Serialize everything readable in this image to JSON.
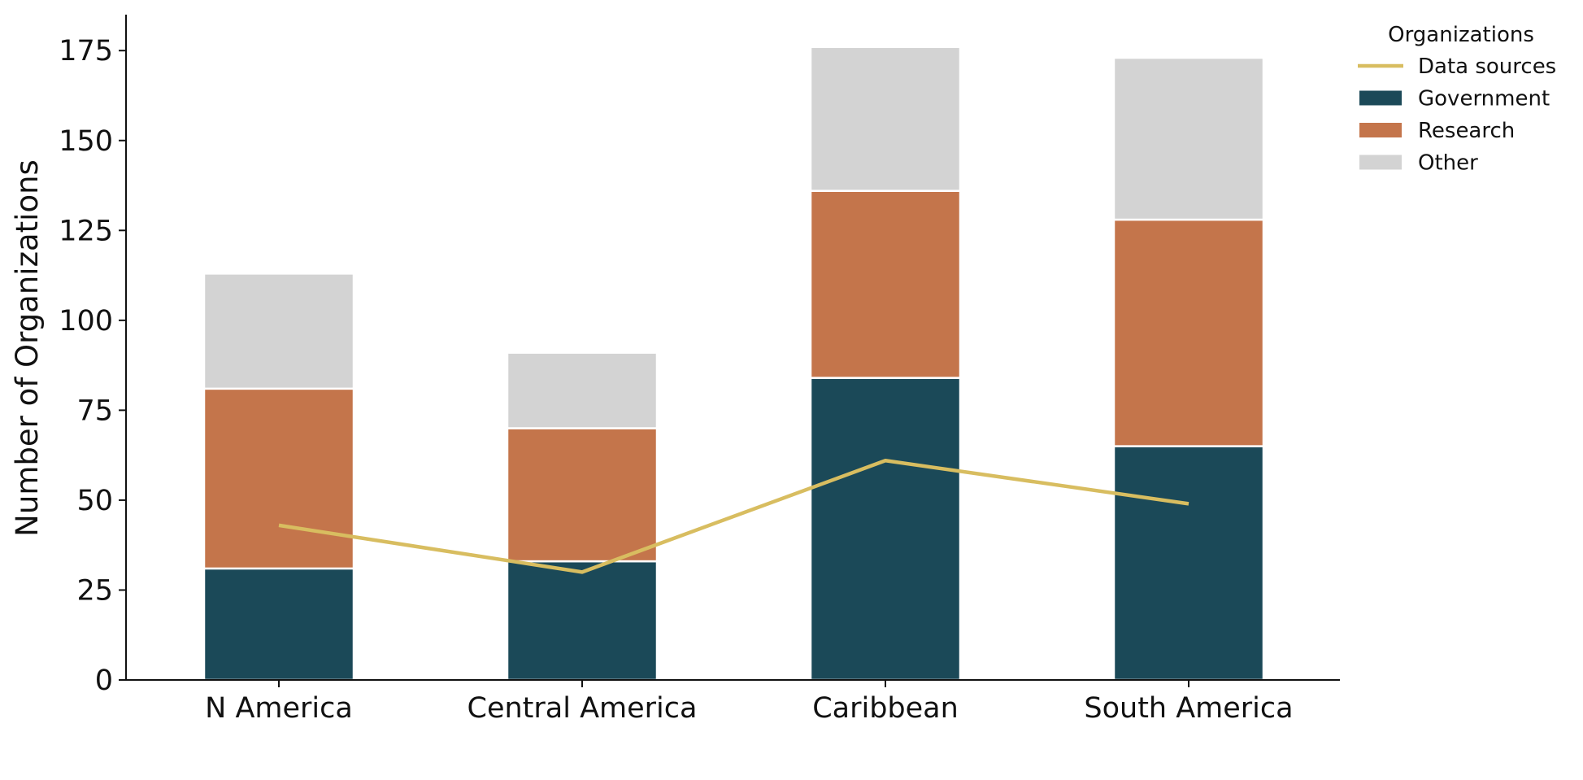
{
  "chart_data": {
    "type": "bar",
    "stacked": true,
    "categories": [
      "N America",
      "Central America",
      "Caribbean",
      "South America"
    ],
    "series": [
      {
        "name": "Government",
        "values": [
          31,
          33,
          84,
          65
        ],
        "color": "#1b4958"
      },
      {
        "name": "Research",
        "values": [
          50,
          37,
          52,
          63
        ],
        "color": "#c4754b"
      },
      {
        "name": "Other",
        "values": [
          32,
          21,
          40,
          45
        ],
        "color": "#d3d3d3"
      }
    ],
    "line_series": {
      "name": "Data sources",
      "values": [
        43,
        30,
        61,
        49
      ],
      "color": "#d8bd60"
    },
    "ylabel": "Number of Organizations",
    "xlabel": "",
    "ylim": [
      0,
      185
    ],
    "yticks": [
      0,
      25,
      50,
      75,
      100,
      125,
      150,
      175
    ],
    "grid": false,
    "legend": {
      "title": "Organizations",
      "placement": "top-right",
      "entries": [
        "Data sources",
        "Government",
        "Research",
        "Other"
      ]
    }
  }
}
